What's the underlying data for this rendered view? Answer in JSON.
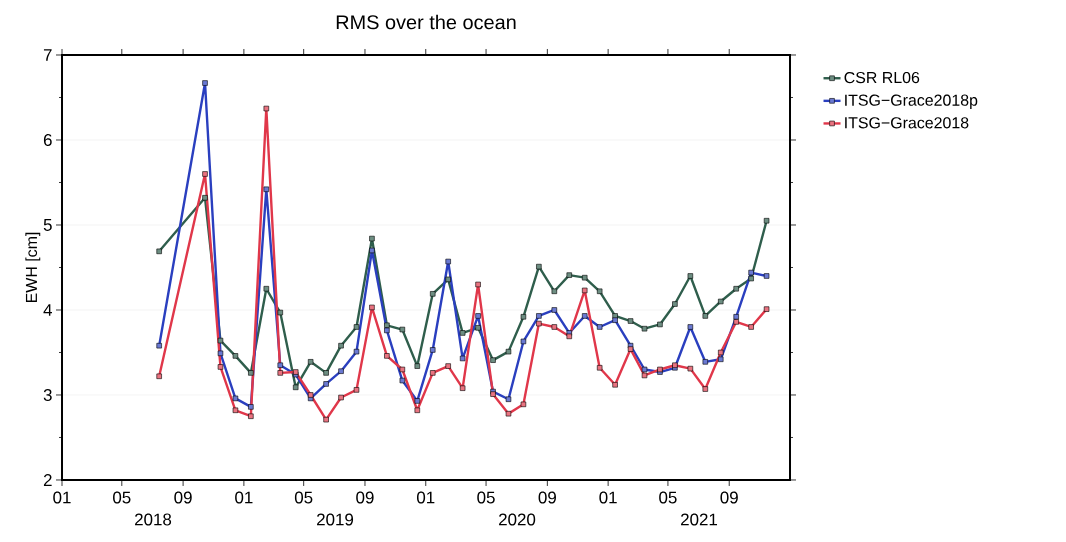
{
  "chart_data": {
    "type": "line",
    "title": "RMS over the ocean",
    "ylabel": "EWH [cm]",
    "x": [
      "2018-07-15",
      "2018-10-15",
      "2018-11-15",
      "2018-12-15",
      "2019-01-15",
      "2019-02-15",
      "2019-03-15",
      "2019-04-15",
      "2019-05-15",
      "2019-06-15",
      "2019-07-15",
      "2019-08-15",
      "2019-09-15",
      "2019-10-15",
      "2019-11-15",
      "2019-12-15",
      "2020-01-15",
      "2020-02-15",
      "2020-03-15",
      "2020-04-15",
      "2020-05-15",
      "2020-06-15",
      "2020-07-15",
      "2020-08-15",
      "2020-09-15",
      "2020-10-15",
      "2020-11-15",
      "2020-12-15",
      "2021-01-15",
      "2021-02-15",
      "2021-03-15",
      "2021-04-15",
      "2021-05-15",
      "2021-06-15",
      "2021-07-15",
      "2021-08-15",
      "2021-09-15",
      "2021-10-15",
      "2021-11-15"
    ],
    "series": [
      {
        "name": "CSR RL06",
        "color": "#2f5e4c",
        "values": [
          4.69,
          5.32,
          3.64,
          3.46,
          3.26,
          4.25,
          3.97,
          3.09,
          3.39,
          3.26,
          3.58,
          3.8,
          4.84,
          3.82,
          3.77,
          3.34,
          4.19,
          4.36,
          3.73,
          3.79,
          3.41,
          3.51,
          3.92,
          4.51,
          4.22,
          4.41,
          4.38,
          4.22,
          3.93,
          3.87,
          3.78,
          3.83,
          4.07,
          4.4,
          3.93,
          4.1,
          4.25,
          4.37,
          5.05
        ]
      },
      {
        "name": "ITSG−Grace2018p",
        "color": "#2a3fbf",
        "values": [
          3.58,
          6.67,
          3.49,
          2.96,
          2.86,
          5.42,
          3.35,
          3.24,
          2.96,
          3.13,
          3.28,
          3.51,
          4.7,
          3.76,
          3.17,
          2.93,
          3.53,
          4.57,
          3.43,
          3.93,
          3.04,
          2.95,
          3.63,
          3.93,
          4.0,
          3.73,
          3.93,
          3.8,
          3.88,
          3.58,
          3.3,
          3.27,
          3.32,
          3.8,
          3.39,
          3.42,
          3.92,
          4.44,
          4.4
        ]
      },
      {
        "name": "ITSG−Grace2018",
        "color": "#e0374a",
        "values": [
          3.22,
          5.6,
          3.33,
          2.82,
          2.75,
          6.37,
          3.26,
          3.27,
          3.0,
          2.71,
          2.97,
          3.06,
          4.03,
          3.46,
          3.3,
          2.82,
          3.26,
          3.34,
          3.08,
          4.3,
          3.01,
          2.78,
          2.89,
          3.84,
          3.8,
          3.69,
          4.23,
          3.32,
          3.12,
          3.54,
          3.23,
          3.3,
          3.35,
          3.31,
          3.07,
          3.5,
          3.86,
          3.8,
          4.01
        ]
      }
    ],
    "xlim": [
      "2018-01-01",
      "2022-01-01"
    ],
    "xticks": [
      {
        "value": "2018-01-01",
        "label": "01"
      },
      {
        "value": "2018-05-01",
        "label": "05"
      },
      {
        "value": "2018-09-01",
        "label": "09"
      },
      {
        "value": "2019-01-01",
        "label": "01"
      },
      {
        "value": "2019-05-01",
        "label": "05"
      },
      {
        "value": "2019-09-01",
        "label": "09"
      },
      {
        "value": "2020-01-01",
        "label": "01"
      },
      {
        "value": "2020-05-01",
        "label": "05"
      },
      {
        "value": "2020-09-01",
        "label": "09"
      },
      {
        "value": "2021-01-01",
        "label": "01"
      },
      {
        "value": "2021-05-01",
        "label": "05"
      },
      {
        "value": "2021-09-01",
        "label": "09"
      }
    ],
    "ylim": [
      2,
      7
    ],
    "yticks": [
      2,
      3,
      4,
      5,
      6,
      7
    ],
    "annotations": [
      "2018",
      "2019",
      "2020",
      "2021"
    ],
    "grid": "y",
    "legend": "right",
    "marker": "square",
    "line_style": "solid"
  }
}
